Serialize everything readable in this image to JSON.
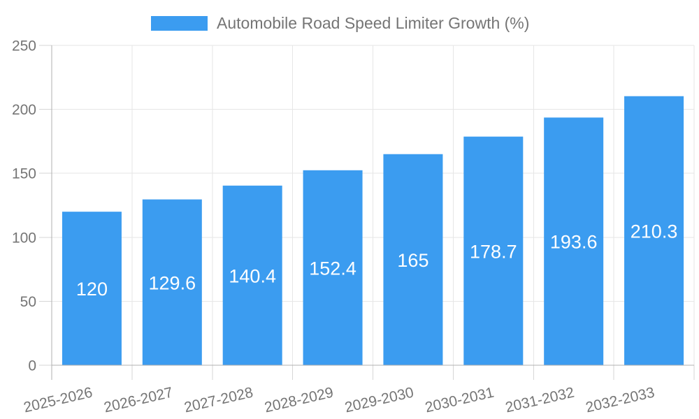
{
  "page": {
    "background": "#ffffff"
  },
  "legend": {
    "label": "Automobile Road Speed Limiter Growth (%)",
    "swatch_color": "#3b9cf0",
    "position": "top"
  },
  "chart_data": {
    "type": "bar",
    "title": "Automobile Road Speed Limiter Growth (%)",
    "series_name": "Automobile Road Speed Limiter Growth (%)",
    "categories": [
      "2025-2026",
      "2026-2027",
      "2027-2028",
      "2028-2029",
      "2029-2030",
      "2030-2031",
      "2031-2032",
      "2032-2033"
    ],
    "values": [
      120,
      129.6,
      140.4,
      152.4,
      165,
      178.7,
      193.6,
      210.3
    ],
    "value_labels": [
      "120",
      "129.6",
      "140.4",
      "152.4",
      "165",
      "178.7",
      "193.6",
      "210.3"
    ],
    "xlabel": "",
    "ylabel": "",
    "ylim": [
      0,
      250
    ],
    "y_ticks": [
      0,
      50,
      100,
      150,
      200,
      250
    ],
    "grid": true,
    "legend_position": "top",
    "x_label_rotation_deg": -13,
    "colors": {
      "bar": "#3b9cf0",
      "value_label": "#ffffff",
      "grid": "#e6e6e6",
      "axis": "#b0b0b0",
      "tick": "#d6d6d6",
      "text": "#757575"
    }
  }
}
